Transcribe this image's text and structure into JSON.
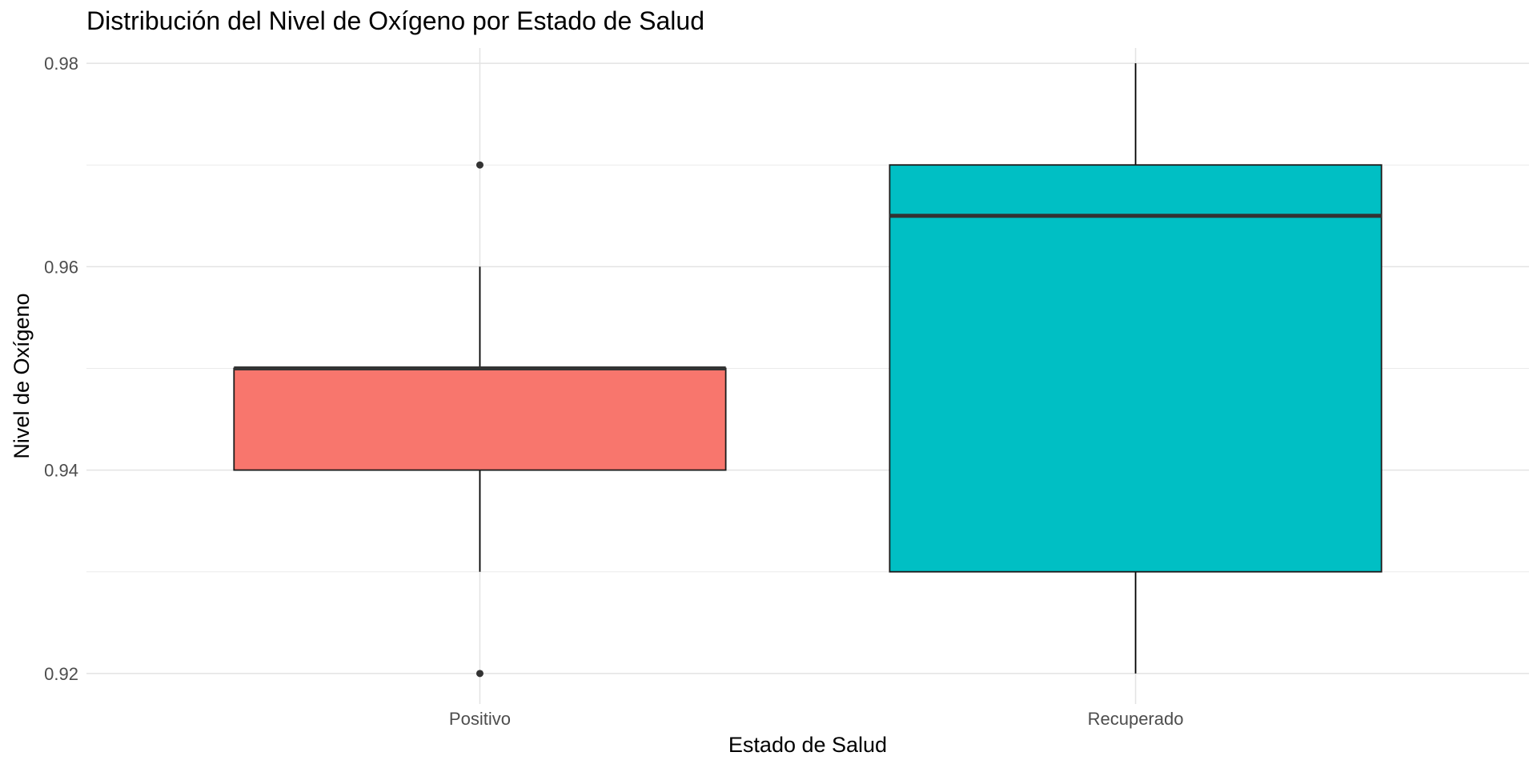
{
  "chart_data": {
    "type": "boxplot",
    "title": "Distribución del Nivel de Oxígeno por Estado de Salud",
    "xlabel": "Estado de Salud",
    "ylabel": "Nivel de Oxígeno",
    "categories": [
      "Positivo",
      "Recuperado"
    ],
    "ylim": [
      0.917,
      0.9815
    ],
    "y_ticks": [
      "0.92",
      "0.94",
      "0.96",
      "0.98"
    ],
    "grid": true,
    "legend": "none",
    "boxes": [
      {
        "category": "Positivo",
        "whisker_low": 0.93,
        "q1": 0.94,
        "median": 0.95,
        "q3": 0.95,
        "whisker_high": 0.96,
        "outliers": [
          0.92,
          0.97
        ],
        "color": "#F8766D"
      },
      {
        "category": "Recuperado",
        "whisker_low": 0.92,
        "q1": 0.93,
        "median": 0.965,
        "q3": 0.97,
        "whisker_high": 0.98,
        "outliers": [],
        "color": "#00BFC4"
      }
    ]
  }
}
